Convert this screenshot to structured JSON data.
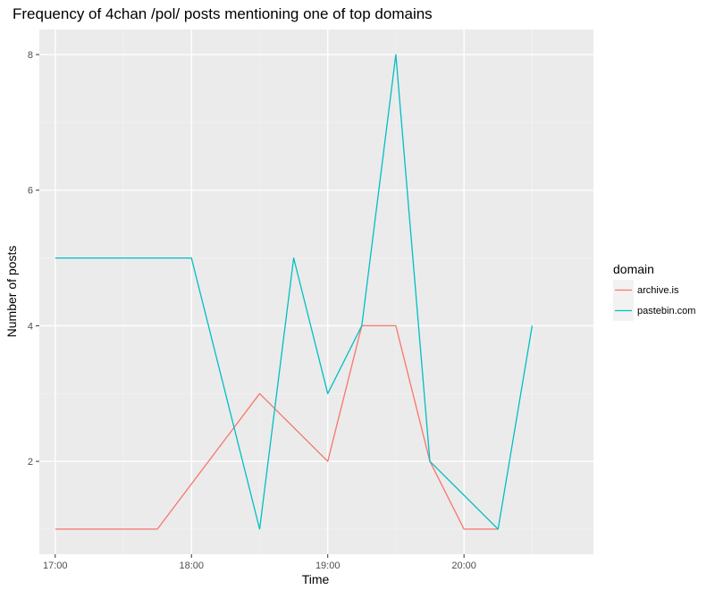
{
  "chart_data": {
    "type": "line",
    "title": "Frequency of 4chan /pol/ posts mentioning one of top domains",
    "xlabel": "Time",
    "ylabel": "Number of posts",
    "x_ticks": [
      "17:00",
      "18:00",
      "19:00",
      "20:00"
    ],
    "y_ticks": [
      2,
      4,
      6,
      8
    ],
    "xlim": [
      "16:53",
      "20:57"
    ],
    "ylim": [
      0.63,
      8.37
    ],
    "grid": true,
    "legend": {
      "title": "domain",
      "position": "right"
    },
    "series": [
      {
        "name": "archive.is",
        "color": "#F8766D",
        "x": [
          "17:00",
          "17:45",
          "18:30",
          "19:00",
          "19:15",
          "19:30",
          "19:45",
          "20:00",
          "20:15"
        ],
        "y": [
          1,
          1,
          3,
          2,
          4,
          4,
          2,
          1,
          1
        ]
      },
      {
        "name": "pastebin.com",
        "color": "#00BFC4",
        "x": [
          "17:00",
          "18:00",
          "18:30",
          "18:45",
          "19:00",
          "19:15",
          "19:30",
          "19:45",
          "20:15",
          "20:30"
        ],
        "y": [
          5,
          5,
          1,
          5,
          3,
          4,
          8,
          2,
          1,
          4
        ]
      }
    ]
  }
}
